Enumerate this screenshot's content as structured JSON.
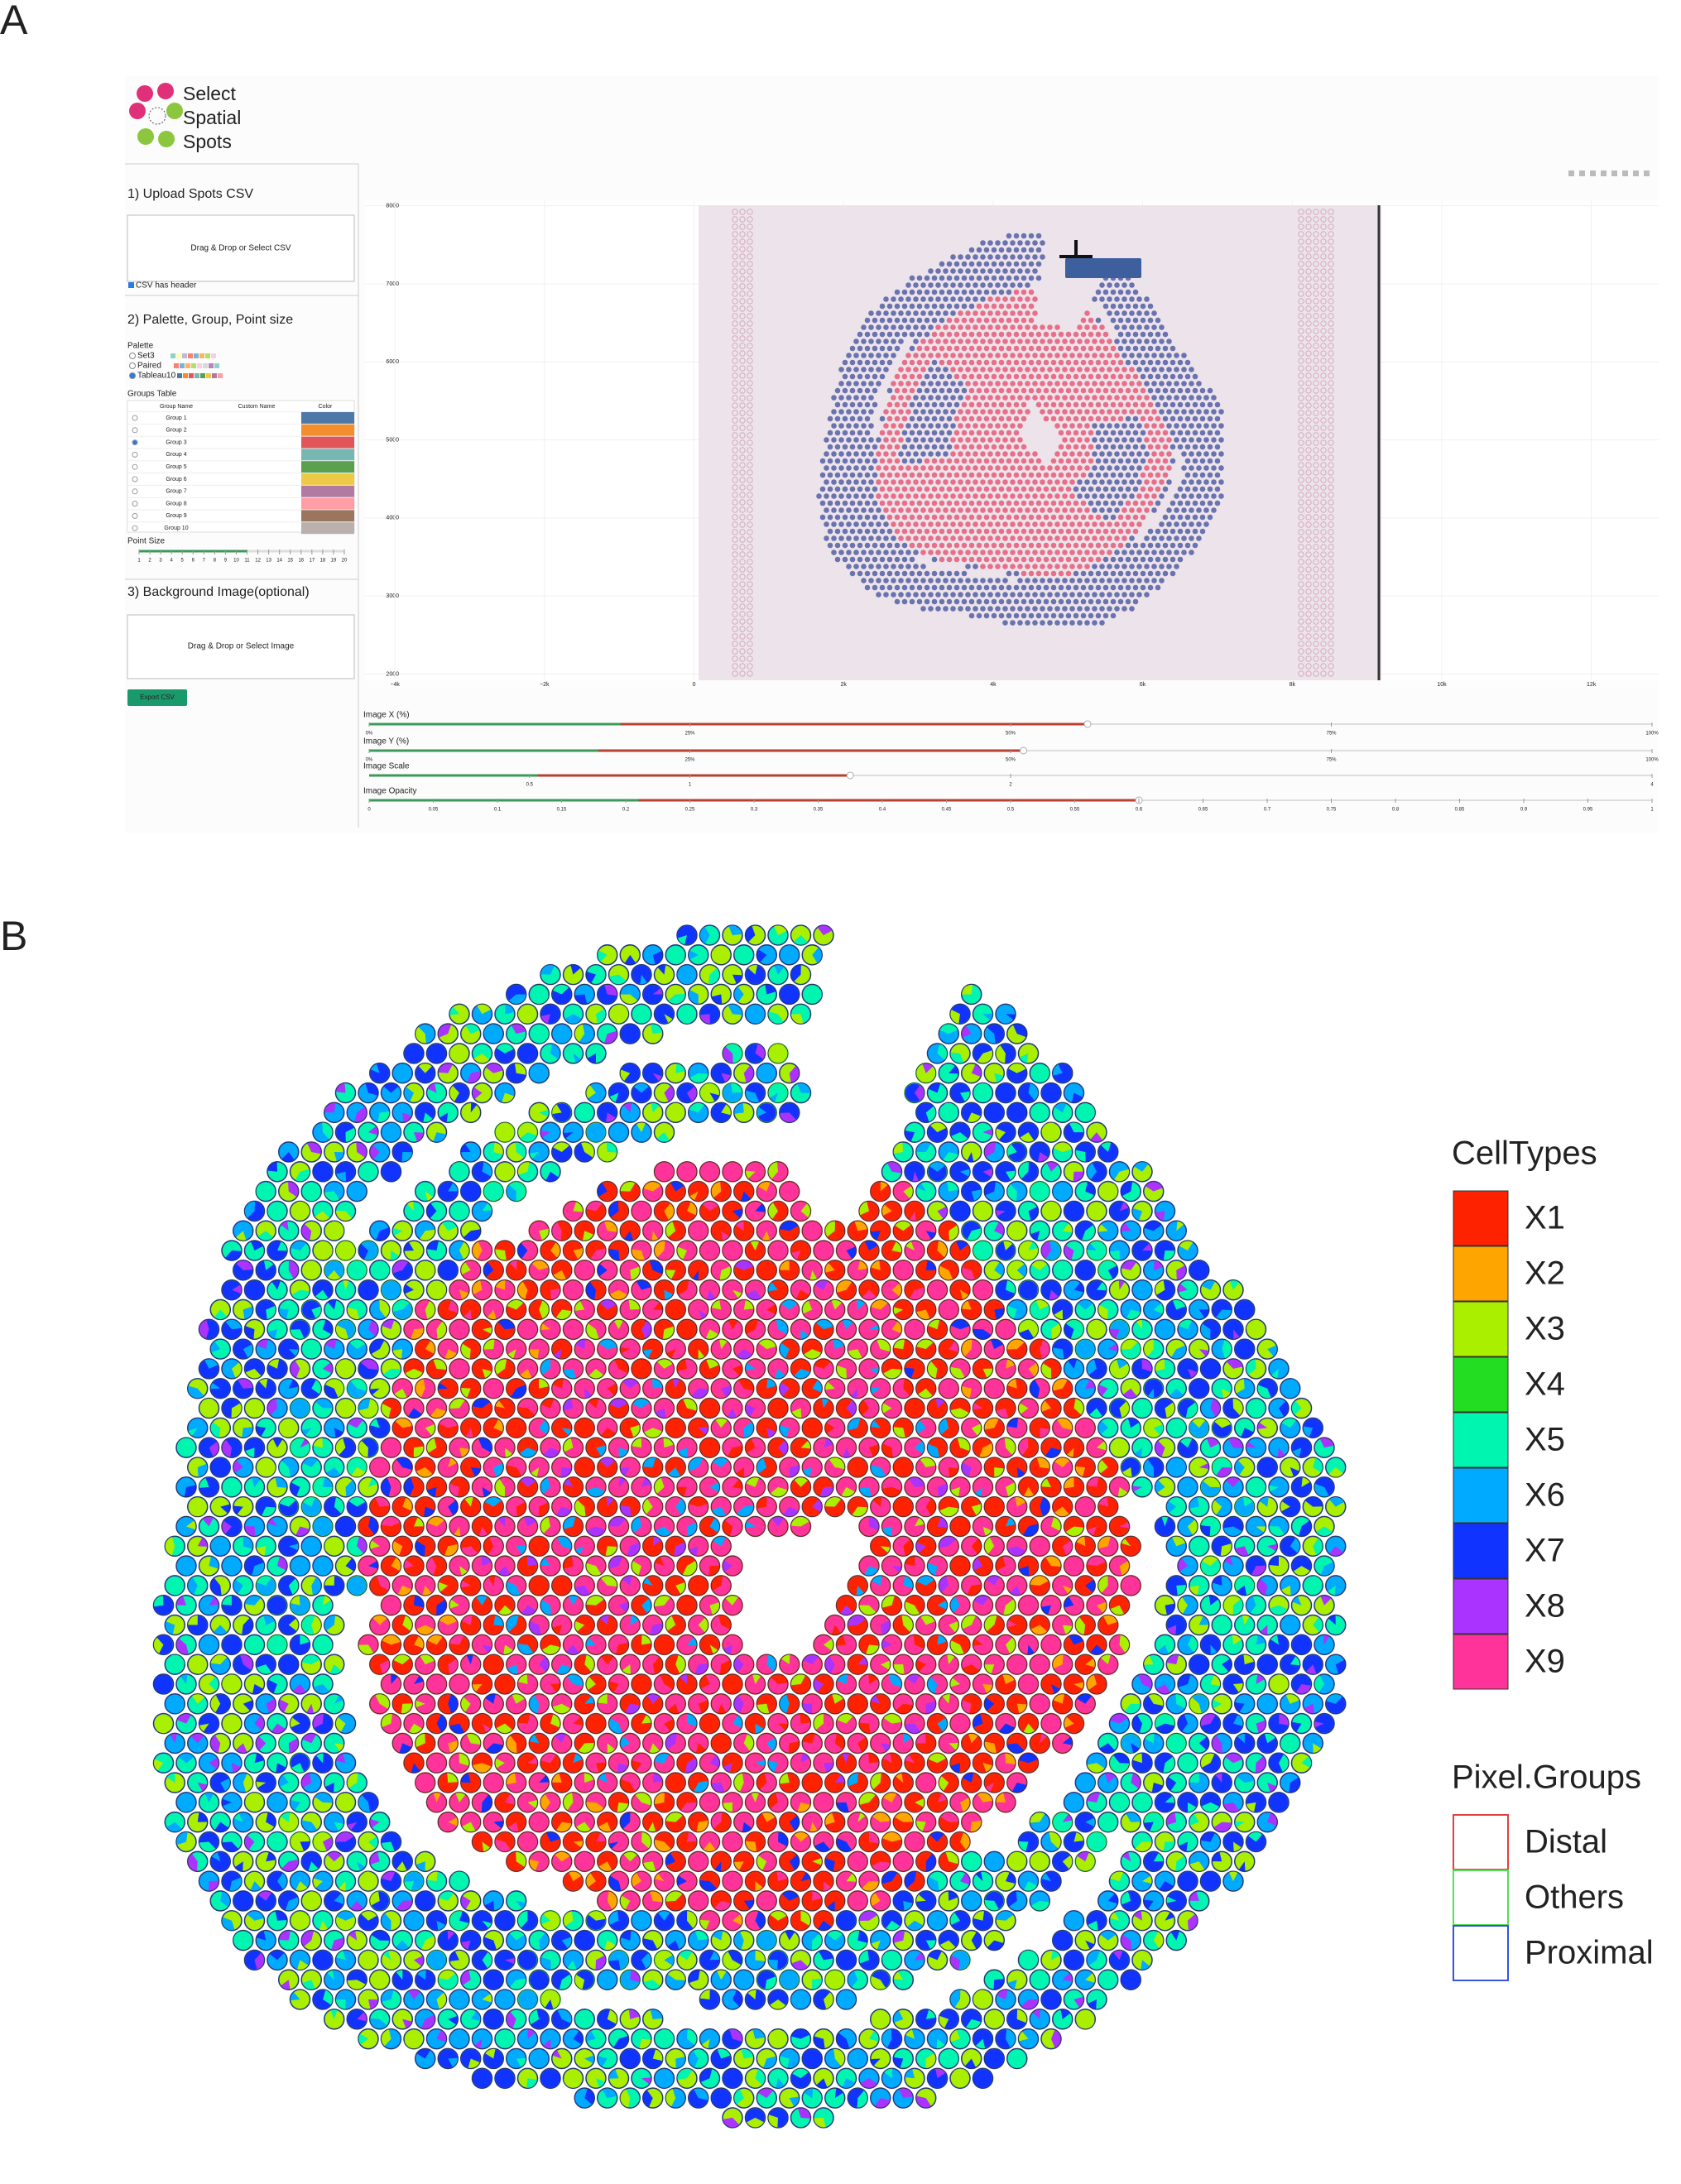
{
  "panel_labels": [
    "A",
    "B"
  ],
  "app": {
    "logo": [
      "Select",
      "Spatial",
      "Spots"
    ],
    "step1": {
      "title": "1) Upload Spots CSV",
      "dropzone": "Drag & Drop or Select CSV",
      "checkbox": "CSV has header"
    },
    "step2": {
      "title": "2) Palette, Group, Point size",
      "palette_label": "Palette",
      "palettes": [
        "Set3",
        "Paired",
        "Tableau10"
      ],
      "groups_table_label": "Groups Table",
      "columns": [
        "Group Name",
        "Custom Name",
        "Color"
      ],
      "groups": [
        {
          "name": "Group 1",
          "color": "#4e79a7"
        },
        {
          "name": "Group 2",
          "color": "#f28e2b"
        },
        {
          "name": "Group 3",
          "color": "#e15759"
        },
        {
          "name": "Group 4",
          "color": "#76b7b2"
        },
        {
          "name": "Group 5",
          "color": "#59a14f"
        },
        {
          "name": "Group 6",
          "color": "#edc948"
        },
        {
          "name": "Group 7",
          "color": "#b07aa1"
        },
        {
          "name": "Group 8",
          "color": "#ff9da7"
        },
        {
          "name": "Group 9",
          "color": "#9c755f"
        },
        {
          "name": "Group 10",
          "color": "#bab0ac"
        }
      ],
      "point_size_label": "Point Size",
      "point_size": {
        "value": 11,
        "lim": [
          1,
          20
        ],
        "ticks": [
          1,
          2,
          3,
          4,
          5,
          6,
          7,
          8,
          9,
          10,
          11,
          12,
          13,
          14,
          15,
          16,
          17,
          18,
          19,
          20
        ]
      }
    },
    "step3": {
      "title": "3) Background Image(optional)",
      "dropzone": "Drag & Drop or Select Image"
    },
    "export_button": "Export CSV",
    "plot": {
      "xlim": [
        -4400,
        12900
      ],
      "ylim": [
        1920,
        8060
      ],
      "xticks": [
        {
          "value": -4000,
          "label": "−4k"
        },
        {
          "value": -2000,
          "label": "−2k"
        },
        0,
        {
          "value": 2000,
          "label": "2k"
        },
        {
          "value": 4000,
          "label": "4k"
        },
        {
          "value": 6000,
          "label": "6k"
        },
        {
          "value": 8000,
          "label": "8k"
        },
        {
          "value": 10000,
          "label": "10k"
        },
        {
          "value": 12000,
          "label": "12k"
        }
      ],
      "yticks": [
        2000,
        3000,
        4000,
        5000,
        6000,
        7000,
        8000
      ]
    },
    "sliders": [
      {
        "label": "Image X (%)",
        "lim": [
          0,
          100
        ],
        "value": 56,
        "ticks": [
          {
            "value": 0,
            "label": "0%"
          },
          {
            "value": 25,
            "label": "25%"
          },
          {
            "value": 50,
            "label": "50%"
          },
          {
            "value": 75,
            "label": "75%"
          },
          {
            "value": 100,
            "label": "100%"
          }
        ]
      },
      {
        "label": "Image Y (%)",
        "lim": [
          0,
          100
        ],
        "value": 51,
        "ticks": [
          {
            "value": 0,
            "label": "0%"
          },
          {
            "value": 25,
            "label": "25%"
          },
          {
            "value": 50,
            "label": "50%"
          },
          {
            "value": 75,
            "label": "75%"
          },
          {
            "value": 100,
            "label": "100%"
          }
        ]
      },
      {
        "label": "Image Scale",
        "lim": [
          0,
          4
        ],
        "value": 1.5,
        "ticks": [
          0.5,
          1,
          2,
          4
        ]
      },
      {
        "label": "Image Opacity",
        "lim": [
          0,
          1
        ],
        "value": 0.6,
        "ticks": [
          0,
          0.05,
          0.1,
          0.15,
          0.2,
          0.25,
          0.3,
          0.35,
          0.4,
          0.45,
          0.5,
          0.55,
          0.6,
          0.65,
          0.7,
          0.75,
          0.8,
          0.85,
          0.9,
          0.95,
          1
        ]
      }
    ]
  },
  "legend": {
    "celltypes_title": "CellTypes",
    "celltypes": [
      {
        "name": "X1",
        "color": "#ff2200"
      },
      {
        "name": "X2",
        "color": "#ffa500"
      },
      {
        "name": "X3",
        "color": "#aaee00"
      },
      {
        "name": "X4",
        "color": "#22dd22"
      },
      {
        "name": "X5",
        "color": "#00f5b0"
      },
      {
        "name": "X6",
        "color": "#00aaff"
      },
      {
        "name": "X7",
        "color": "#1133ff"
      },
      {
        "name": "X8",
        "color": "#aa33ff"
      },
      {
        "name": "X9",
        "color": "#ff3399"
      }
    ],
    "groups_title": "Pixel.Groups",
    "groups": [
      {
        "name": "Distal",
        "color": "#e04040"
      },
      {
        "name": "Others",
        "color": "#55dd55"
      },
      {
        "name": "Proximal",
        "color": "#3355dd"
      }
    ]
  }
}
